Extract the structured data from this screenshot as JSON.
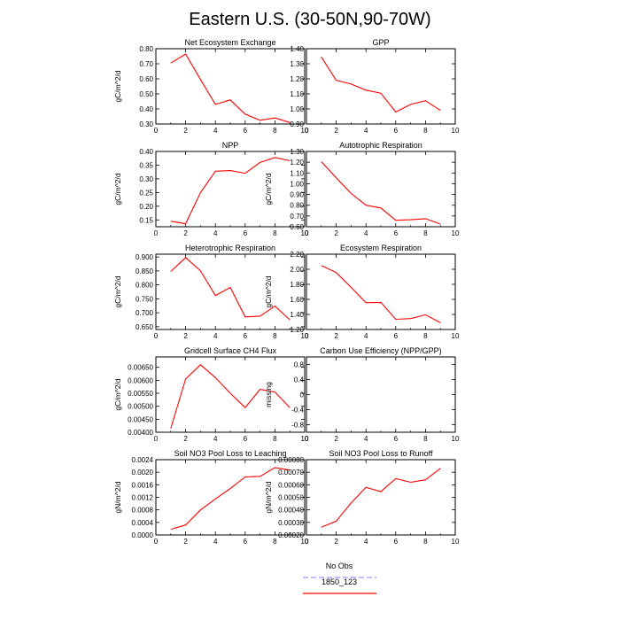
{
  "figure_title": "Eastern U.S. (30-50N,90-70W)",
  "legend": {
    "entries": [
      {
        "label": "No Obs",
        "color": "#9999ff",
        "dash": true
      },
      {
        "label": "1850_123",
        "color": "#ff0000",
        "dash": false
      }
    ]
  },
  "chart_data": [
    {
      "type": "line",
      "title": "Net Ecosystem Exchange",
      "ylabel": "gC/m^2/d",
      "xlim": [
        0,
        10
      ],
      "xticks": [
        0,
        2,
        4,
        6,
        8,
        10
      ],
      "ylim": [
        0.3,
        0.8
      ],
      "yticks": [
        "0.30",
        "0.40",
        "0.50",
        "0.60",
        "0.70",
        "0.80"
      ],
      "series": [
        {
          "color": "#ff0000",
          "x": [
            1,
            2,
            3,
            4,
            5,
            6,
            7,
            8,
            9
          ],
          "y": [
            0.705,
            0.765,
            0.595,
            0.43,
            0.46,
            0.365,
            0.325,
            0.34,
            0.31
          ]
        }
      ]
    },
    {
      "type": "line",
      "title": "GPP",
      "ylabel": "",
      "xlim": [
        0,
        10
      ],
      "xticks": [
        0,
        2,
        4,
        6,
        8,
        10
      ],
      "ylim": [
        0.9,
        1.4
      ],
      "yticks": [
        "0.90",
        "1.00",
        "1.10",
        "1.20",
        "1.30",
        "1.40"
      ],
      "series": [
        {
          "color": "#ff0000",
          "x": [
            1,
            2,
            3,
            4,
            5,
            6,
            7,
            8,
            9
          ],
          "y": [
            1.345,
            1.19,
            1.165,
            1.125,
            1.105,
            0.98,
            1.03,
            1.055,
            0.99
          ]
        }
      ]
    },
    {
      "type": "line",
      "title": "NPP",
      "ylabel": "gC/m^2/d",
      "xlim": [
        0,
        10
      ],
      "xticks": [
        0,
        2,
        4,
        6,
        8,
        10
      ],
      "ylim": [
        0.125,
        0.4
      ],
      "yticks": [
        "0.15",
        "0.20",
        "0.25",
        "0.30",
        "0.35",
        "0.40"
      ],
      "series": [
        {
          "color": "#ff0000",
          "x": [
            1,
            2,
            3,
            4,
            5,
            6,
            7,
            8,
            9
          ],
          "y": [
            0.145,
            0.136,
            0.25,
            0.328,
            0.33,
            0.32,
            0.36,
            0.378,
            0.366
          ]
        }
      ]
    },
    {
      "type": "line",
      "title": "Autotrophic Respiration",
      "ylabel": "gC/m^2/d",
      "xlim": [
        0,
        10
      ],
      "xticks": [
        0,
        2,
        4,
        6,
        8,
        10
      ],
      "ylim": [
        0.6,
        1.3
      ],
      "yticks": [
        "0.60",
        "0.70",
        "0.80",
        "0.90",
        "1.00",
        "1.10",
        "1.20",
        "1.30"
      ],
      "series": [
        {
          "color": "#ff0000",
          "x": [
            1,
            2,
            3,
            4,
            5,
            6,
            7,
            8,
            9
          ],
          "y": [
            1.205,
            1.055,
            0.91,
            0.8,
            0.775,
            0.66,
            0.665,
            0.675,
            0.625
          ]
        }
      ]
    },
    {
      "type": "line",
      "title": "Heterotrophic Respiration",
      "ylabel": "gC/m^2/d",
      "xlim": [
        0,
        10
      ],
      "xticks": [
        0,
        2,
        4,
        6,
        8,
        10
      ],
      "ylim": [
        0.64,
        0.91
      ],
      "yticks": [
        "0.650",
        "0.700",
        "0.750",
        "0.800",
        "0.850",
        "0.900"
      ],
      "series": [
        {
          "color": "#ff0000",
          "x": [
            1,
            2,
            3,
            4,
            5,
            6,
            7,
            8,
            9
          ],
          "y": [
            0.848,
            0.898,
            0.85,
            0.762,
            0.791,
            0.685,
            0.688,
            0.724,
            0.675
          ]
        }
      ]
    },
    {
      "type": "line",
      "title": "Ecosystem Respiration",
      "ylabel": "gC/m^2/d",
      "xlim": [
        0,
        10
      ],
      "xticks": [
        0,
        2,
        4,
        6,
        8,
        10
      ],
      "ylim": [
        1.2,
        2.2
      ],
      "yticks": [
        "1.20",
        "1.40",
        "1.60",
        "1.80",
        "2.00",
        "2.20"
      ],
      "series": [
        {
          "color": "#ff0000",
          "x": [
            1,
            2,
            3,
            4,
            5,
            6,
            7,
            8,
            9
          ],
          "y": [
            2.05,
            1.955,
            1.76,
            1.555,
            1.56,
            1.335,
            1.345,
            1.395,
            1.29
          ]
        }
      ]
    },
    {
      "type": "line",
      "title": "Gridcell Surface CH4 Flux",
      "ylabel": "gC/m^2/d",
      "xlim": [
        0,
        10
      ],
      "xticks": [
        0,
        2,
        4,
        6,
        8,
        10
      ],
      "ylim": [
        0.004,
        0.0069
      ],
      "yticks": [
        "0.00400",
        "0.00450",
        "0.00500",
        "0.00550",
        "0.00600",
        "0.00650"
      ],
      "series": [
        {
          "color": "#ff0000",
          "x": [
            1,
            2,
            3,
            4,
            5,
            6,
            7,
            8,
            9
          ],
          "y": [
            0.00415,
            0.00605,
            0.0066,
            0.0061,
            0.0055,
            0.00495,
            0.00565,
            0.00555,
            0.00495
          ]
        }
      ]
    },
    {
      "type": "line",
      "title": "Carbon Use Efficiency (NPP/GPP)",
      "ylabel": "missing",
      "xlim": [
        0,
        10
      ],
      "xticks": [
        0,
        2,
        4,
        6,
        8,
        10
      ],
      "ylim": [
        -1.0,
        1.0
      ],
      "yticks": [
        "-0.8",
        "-0.4",
        "0",
        "0.4",
        "0.8"
      ],
      "series": []
    },
    {
      "type": "line",
      "title": "Soil NO3 Pool Loss to Leaching",
      "ylabel": "gN/m^2/d",
      "xlim": [
        0,
        10
      ],
      "xticks": [
        0,
        2,
        4,
        6,
        8,
        10
      ],
      "ylim": [
        0.0,
        0.0024
      ],
      "yticks": [
        "0.0000",
        "0.0004",
        "0.0008",
        "0.0012",
        "0.0016",
        "0.0020",
        "0.0024"
      ],
      "series": [
        {
          "color": "#ff0000",
          "x": [
            1,
            2,
            3,
            4,
            5,
            6,
            7,
            8,
            9
          ],
          "y": [
            0.00018,
            0.00032,
            0.0008,
            0.00115,
            0.00148,
            0.00185,
            0.00187,
            0.00215,
            0.00207
          ]
        }
      ]
    },
    {
      "type": "line",
      "title": "Soil NO3 Pool Loss to Runoff",
      "ylabel": "gN/m^2/d",
      "xlim": [
        0,
        10
      ],
      "xticks": [
        0,
        2,
        4,
        6,
        8,
        10
      ],
      "ylim": [
        0.0002,
        0.0008
      ],
      "yticks": [
        "0.00020",
        "0.00030",
        "0.00040",
        "0.00050",
        "0.00060",
        "0.00070",
        "0.00080"
      ],
      "series": [
        {
          "color": "#ff0000",
          "x": [
            1,
            2,
            3,
            4,
            5,
            6,
            7,
            8,
            9
          ],
          "y": [
            0.000262,
            0.00031,
            0.000455,
            0.00058,
            0.000545,
            0.00065,
            0.00062,
            0.00064,
            0.00073
          ]
        }
      ]
    }
  ]
}
